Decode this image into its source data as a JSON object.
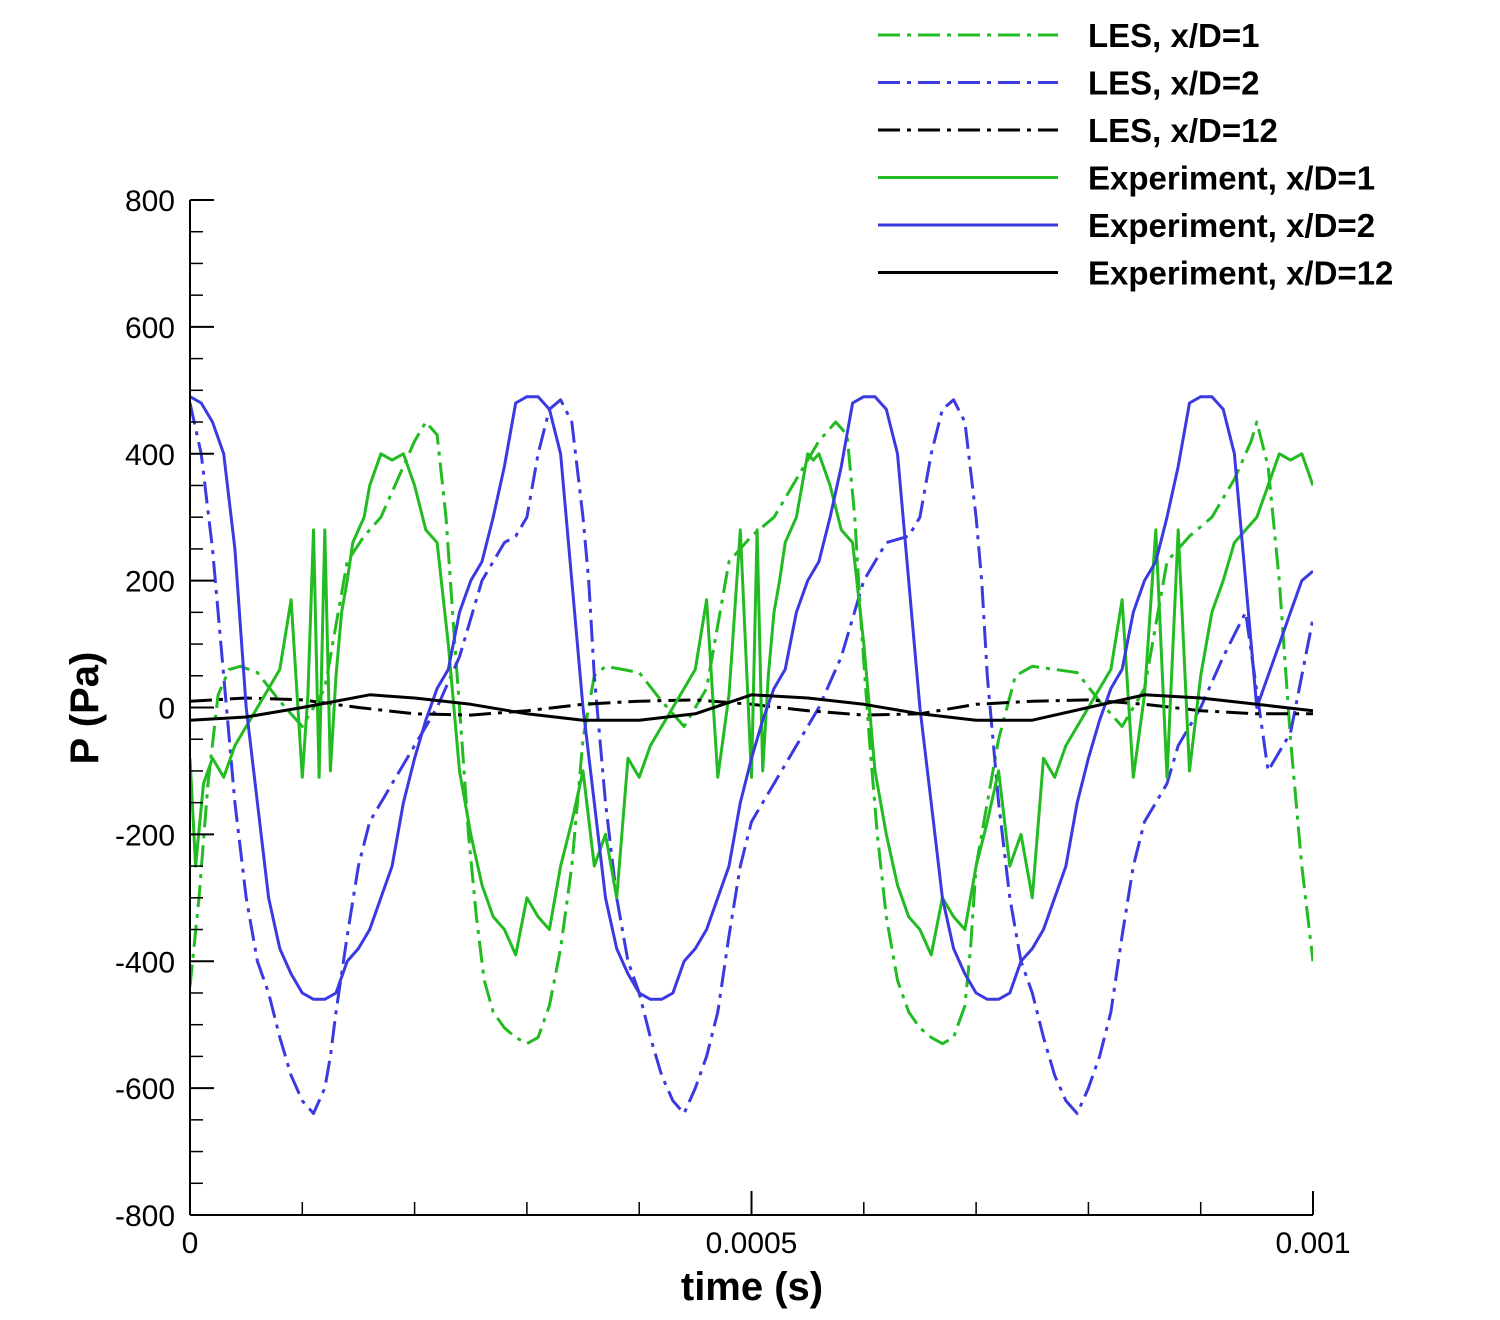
{
  "chart_data": {
    "type": "line",
    "title": "",
    "xlabel": "time (s)",
    "ylabel": "P (Pa)",
    "xlim": [
      0,
      0.001
    ],
    "ylim": [
      -800,
      800
    ],
    "x_ticks": [
      0,
      0.0005,
      0.001
    ],
    "x_tick_labels": [
      "0",
      "0.0005",
      "0.001"
    ],
    "y_ticks": [
      -800,
      -600,
      -400,
      -200,
      0,
      200,
      400,
      600,
      800
    ],
    "y_tick_labels": [
      "-800",
      "-600",
      "-400",
      "-200",
      "0",
      "200",
      "400",
      "600",
      "800"
    ],
    "grid": false,
    "legend_position": "top-right",
    "series": [
      {
        "name": "LES, x/D=1",
        "color": "#22bb22",
        "dash": "dashdot",
        "x": [
          0,
          8e-06,
          1.6e-05,
          2.5e-05,
          3.5e-05,
          4.5e-05,
          6e-05,
          8e-05,
          0.0001,
          0.00012,
          0.00014,
          0.000155,
          0.00017,
          0.000185,
          0.0002,
          0.00021,
          0.00022,
          0.000228,
          0.000235,
          0.000242,
          0.000248,
          0.000255,
          0.000262,
          0.00027,
          0.00028,
          0.00029,
          0.0003,
          0.00031,
          0.00032,
          0.00033,
          0.00034,
          0.000345,
          0.00035,
          0.00036,
          0.00037,
          0.000385,
          0.0004,
          0.00042,
          0.00044,
          0.00046,
          0.00048,
          0.0005,
          0.00052,
          0.00054,
          0.00056,
          0.000575,
          0.000585,
          0.000592,
          0.000598,
          0.000605,
          0.000612,
          0.00062,
          0.00063,
          0.00064,
          0.00065,
          0.00066,
          0.00067,
          0.00068,
          0.00069,
          0.000695,
          0.0007,
          0.00071,
          0.00072,
          0.000735,
          0.00075,
          0.00077,
          0.00079,
          0.00081,
          0.00083,
          0.00085,
          0.00087,
          0.00089,
          0.00091,
          0.00093,
          0.000945,
          0.00095,
          0.00096,
          0.00097,
          0.00098,
          0.00099,
          0.001
        ],
        "y": [
          -440,
          -300,
          -120,
          20,
          60,
          65,
          55,
          10,
          -30,
          30,
          230,
          270,
          300,
          360,
          420,
          450,
          430,
          300,
          120,
          -50,
          -200,
          -330,
          -430,
          -480,
          -505,
          -520,
          -530,
          -520,
          -470,
          -380,
          -250,
          -150,
          -50,
          50,
          65,
          60,
          55,
          10,
          -30,
          30,
          230,
          270,
          300,
          360,
          420,
          450,
          430,
          300,
          120,
          -50,
          -200,
          -330,
          -430,
          -480,
          -505,
          -520,
          -530,
          -520,
          -470,
          -380,
          -250,
          -150,
          -50,
          50,
          65,
          60,
          55,
          10,
          -30,
          30,
          230,
          270,
          300,
          360,
          420,
          450,
          380,
          200,
          -50,
          -250,
          -400
        ]
      },
      {
        "name": "LES, x/D=2",
        "color": "#3a3ae0",
        "dash": "dashdot",
        "x": [
          0,
          1e-05,
          2e-05,
          3e-05,
          4e-05,
          5e-05,
          6e-05,
          7e-05,
          8e-05,
          9e-05,
          0.0001,
          0.00011,
          0.00012,
          0.000125,
          0.00013,
          0.00014,
          0.00015,
          0.00016,
          0.00017,
          0.00018,
          0.0002,
          0.00022,
          0.00024,
          0.00026,
          0.00028,
          0.00029,
          0.0003,
          0.00031,
          0.00032,
          0.00033,
          0.00034,
          0.00035,
          0.000355,
          0.00036,
          0.00037,
          0.00038,
          0.00039,
          0.0004,
          0.00041,
          0.00042,
          0.00043,
          0.00044,
          0.00045,
          0.00046,
          0.00047,
          0.00048,
          0.00049,
          0.0005,
          0.00051,
          0.00052,
          0.00054,
          0.00056,
          0.00058,
          0.0006,
          0.00062,
          0.00064,
          0.00065,
          0.00066,
          0.00067,
          0.00068,
          0.00069,
          0.0007,
          0.000705,
          0.00071,
          0.00072,
          0.00073,
          0.00074,
          0.00075,
          0.00076,
          0.00077,
          0.00078,
          0.00079,
          0.0008,
          0.00081,
          0.00082,
          0.00083,
          0.00084,
          0.00085,
          0.00086,
          0.00087,
          0.00088,
          0.0009,
          0.00092,
          0.00094,
          0.00096,
          0.00098,
          0.001
        ],
        "y": [
          480,
          400,
          250,
          50,
          -150,
          -300,
          -400,
          -450,
          -520,
          -580,
          -620,
          -640,
          -600,
          -550,
          -480,
          -360,
          -250,
          -180,
          -150,
          -120,
          -60,
          0,
          80,
          200,
          260,
          270,
          300,
          400,
          470,
          485,
          450,
          300,
          200,
          50,
          -150,
          -300,
          -400,
          -450,
          -520,
          -580,
          -620,
          -640,
          -600,
          -550,
          -480,
          -360,
          -250,
          -180,
          -150,
          -120,
          -60,
          0,
          80,
          200,
          260,
          270,
          300,
          400,
          470,
          485,
          450,
          300,
          200,
          50,
          -150,
          -300,
          -400,
          -450,
          -520,
          -580,
          -620,
          -640,
          -600,
          -550,
          -480,
          -360,
          -250,
          -180,
          -150,
          -120,
          -60,
          0,
          80,
          150,
          -100,
          -40,
          140
        ]
      },
      {
        "name": "LES, x/D=12",
        "color": "#000000",
        "dash": "dashdot",
        "x": [
          0,
          5e-05,
          0.0001,
          0.00015,
          0.0002,
          0.00025,
          0.0003,
          0.00035,
          0.0004,
          0.00045,
          0.0005,
          0.00055,
          0.0006,
          0.00065,
          0.0007,
          0.00075,
          0.0008,
          0.00085,
          0.0009,
          0.00095,
          0.001
        ],
        "y": [
          10,
          15,
          12,
          0,
          -10,
          -12,
          -5,
          5,
          10,
          12,
          5,
          -5,
          -12,
          -10,
          5,
          10,
          12,
          5,
          -5,
          -10,
          -10
        ]
      },
      {
        "name": "Experiment, x/D=1",
        "color": "#22bb22",
        "dash": "solid",
        "x": [
          0,
          5e-06,
          1.2e-05,
          2e-05,
          3e-05,
          4e-05,
          5e-05,
          6e-05,
          7e-05,
          8e-05,
          9e-05,
          0.0001,
          0.000105,
          0.00011,
          0.000115,
          0.00012,
          0.000125,
          0.00013,
          0.000135,
          0.00014,
          0.000145,
          0.00015,
          0.000155,
          0.00016,
          0.00017,
          0.00018,
          0.00019,
          0.0002,
          0.00021,
          0.00022,
          0.00023,
          0.00024,
          0.00025,
          0.00026,
          0.00027,
          0.00028,
          0.00029,
          0.0003,
          0.00031,
          0.00032,
          0.00033,
          0.00034,
          0.00035,
          0.00036,
          0.00037,
          0.00038,
          0.00039,
          0.0004,
          0.00041,
          0.00042,
          0.00043,
          0.00044,
          0.00045,
          0.00046,
          0.00047,
          0.00048,
          0.00049,
          0.0005,
          0.000505,
          0.00051,
          0.000515,
          0.00052,
          0.000525,
          0.00053,
          0.000535,
          0.00054,
          0.000545,
          0.00055,
          0.000555,
          0.00056,
          0.00057,
          0.00058,
          0.00059,
          0.0006,
          0.00061,
          0.00062,
          0.00063,
          0.00064,
          0.00065,
          0.00066,
          0.00067,
          0.00068,
          0.00069,
          0.0007,
          0.00071,
          0.00072,
          0.00073,
          0.00074,
          0.00075,
          0.00076,
          0.00077,
          0.00078,
          0.00079,
          0.0008,
          0.00081,
          0.00082,
          0.00083,
          0.00084,
          0.00085,
          0.00086,
          0.00087,
          0.00088,
          0.00089,
          0.0009,
          0.00091,
          0.00092,
          0.00093,
          0.00094,
          0.00095,
          0.00096,
          0.00097,
          0.00098,
          0.00099,
          0.001
        ],
        "y": [
          -80,
          -250,
          -120,
          -80,
          -110,
          -60,
          -30,
          0,
          30,
          60,
          170,
          -110,
          20,
          280,
          -110,
          280,
          -100,
          50,
          150,
          200,
          260,
          280,
          300,
          350,
          400,
          390,
          400,
          350,
          280,
          260,
          100,
          -100,
          -200,
          -280,
          -330,
          -350,
          -390,
          -300,
          -330,
          -350,
          -250,
          -180,
          -100,
          -250,
          -200,
          -300,
          -80,
          -110,
          -60,
          -30,
          0,
          30,
          60,
          170,
          -110,
          20,
          280,
          -110,
          280,
          -100,
          50,
          150,
          200,
          260,
          280,
          300,
          350,
          400,
          390,
          400,
          350,
          280,
          260,
          100,
          -100,
          -200,
          -280,
          -330,
          -350,
          -390,
          -300,
          -330,
          -350,
          -250,
          -180,
          -100,
          -250,
          -200,
          -300,
          -80,
          -110,
          -60,
          -30,
          0,
          30,
          60,
          170,
          -110,
          20,
          280,
          -110,
          280,
          -100,
          50,
          150,
          200,
          260,
          280,
          300,
          350,
          400,
          390,
          400,
          350
        ]
      },
      {
        "name": "Experiment, x/D=2",
        "color": "#3a3ae0",
        "dash": "solid",
        "x": [
          0,
          1e-05,
          2e-05,
          3e-05,
          4e-05,
          5e-05,
          6e-05,
          7e-05,
          8e-05,
          9e-05,
          0.0001,
          0.00011,
          0.00012,
          0.00013,
          0.00014,
          0.00015,
          0.00016,
          0.00017,
          0.00018,
          0.00019,
          0.0002,
          0.00021,
          0.00022,
          0.00023,
          0.00024,
          0.00025,
          0.00026,
          0.00027,
          0.00028,
          0.00029,
          0.0003,
          0.00031,
          0.00032,
          0.00033,
          0.00034,
          0.00035,
          0.00036,
          0.00037,
          0.00038,
          0.00039,
          0.0004,
          0.00041,
          0.00042,
          0.00043,
          0.00044,
          0.00045,
          0.00046,
          0.00047,
          0.00048,
          0.00049,
          0.0005,
          0.00051,
          0.00052,
          0.00053,
          0.00054,
          0.00055,
          0.00056,
          0.00057,
          0.00058,
          0.00059,
          0.0006,
          0.00061,
          0.00062,
          0.00063,
          0.00064,
          0.00065,
          0.00066,
          0.00067,
          0.00068,
          0.00069,
          0.0007,
          0.00071,
          0.00072,
          0.00073,
          0.00074,
          0.00075,
          0.00076,
          0.00077,
          0.00078,
          0.00079,
          0.0008,
          0.00081,
          0.00082,
          0.00083,
          0.00084,
          0.00085,
          0.00086,
          0.00087,
          0.00088,
          0.00089,
          0.0009,
          0.00091,
          0.00092,
          0.00093,
          0.00094,
          0.00095,
          0.00096,
          0.00097,
          0.00098,
          0.00099,
          0.001
        ],
        "y": [
          490,
          480,
          450,
          400,
          250,
          0,
          -150,
          -300,
          -380,
          -420,
          -450,
          -460,
          -460,
          -450,
          -400,
          -380,
          -350,
          -300,
          -250,
          -150,
          -80,
          -20,
          30,
          60,
          150,
          200,
          230,
          300,
          380,
          480,
          490,
          490,
          470,
          400,
          200,
          0,
          -150,
          -300,
          -380,
          -420,
          -450,
          -460,
          -460,
          -450,
          -400,
          -380,
          -350,
          -300,
          -250,
          -150,
          -80,
          -20,
          30,
          60,
          150,
          200,
          230,
          300,
          380,
          480,
          490,
          490,
          470,
          400,
          200,
          0,
          -150,
          -300,
          -380,
          -420,
          -450,
          -460,
          -460,
          -450,
          -400,
          -380,
          -350,
          -300,
          -250,
          -150,
          -80,
          -20,
          30,
          60,
          150,
          200,
          230,
          300,
          380,
          480,
          490,
          490,
          470,
          400,
          200,
          0,
          50,
          100,
          150,
          200,
          215
        ]
      },
      {
        "name": "Experiment, x/D=12",
        "color": "#000000",
        "dash": "solid",
        "x": [
          0,
          5e-05,
          0.0001,
          0.00016,
          0.0002,
          0.00025,
          0.0003,
          0.00035,
          0.0004,
          0.00045,
          0.0005,
          0.00055,
          0.0006,
          0.00065,
          0.0007,
          0.00075,
          0.0008,
          0.00085,
          0.0009,
          0.00095,
          0.001
        ],
        "y": [
          -20,
          -15,
          0,
          20,
          15,
          5,
          -10,
          -20,
          -20,
          -10,
          20,
          15,
          5,
          -10,
          -20,
          -20,
          0,
          20,
          15,
          5,
          -5
        ]
      }
    ]
  }
}
